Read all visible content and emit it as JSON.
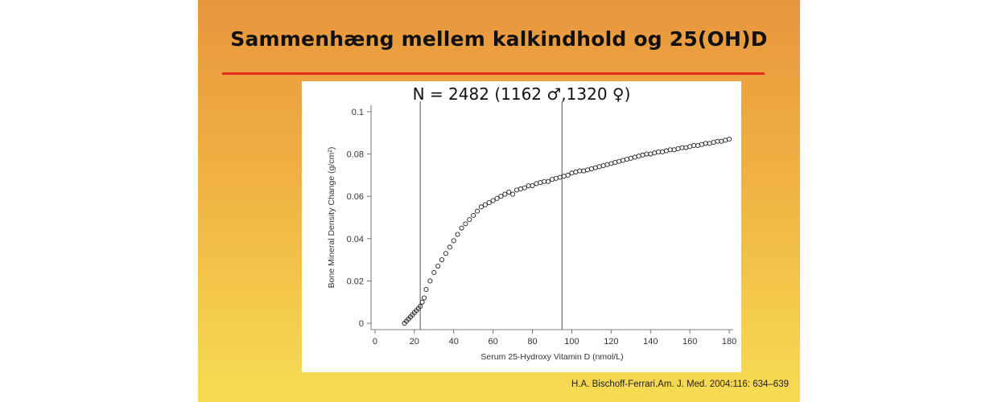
{
  "slide": {
    "title": "Sammenhæng mellem kalkindhold og 25(OH)D",
    "sample_size_label": "N = 2482 (1162 ♂,1320 ♀)",
    "citation": "H.A. Bischoff-Ferrari.Am. J. Med. 2004:116: 634–639",
    "colors": {
      "title_rule": "#e2311c",
      "background_top": "#e8963e",
      "background_bottom": "#f7dc52"
    }
  },
  "chart_data": {
    "type": "scatter",
    "title": "",
    "xlabel": "Serum 25-Hydroxy Vitamin D (nmol/L)",
    "ylabel": "Bone Mineral Density Change (g/cm²)",
    "xlim": [
      -2,
      182
    ],
    "ylim": [
      -0.003,
      0.103
    ],
    "xticks": [
      0,
      20,
      40,
      60,
      80,
      100,
      120,
      140,
      160,
      180
    ],
    "yticks": [
      0,
      0.02,
      0.04,
      0.06,
      0.08,
      0.1
    ],
    "ytick_labels": [
      "0",
      "0.02",
      "0.04",
      "0.06",
      "0.08",
      "0.1"
    ],
    "reference_lines_x": [
      23,
      95
    ],
    "grid": false,
    "marker": "open-circle",
    "series": [
      {
        "x": [
          15,
          16,
          17,
          18,
          19,
          20,
          21,
          22,
          23,
          24,
          25,
          26,
          28,
          30,
          32,
          34,
          36,
          38,
          40,
          42,
          44,
          46,
          48,
          50,
          52,
          54,
          56,
          58,
          60,
          62,
          64,
          66,
          68,
          70,
          72,
          74,
          76,
          78,
          80,
          82,
          84,
          86,
          88,
          90,
          92,
          94,
          96,
          98,
          100,
          102,
          104,
          106,
          108,
          110,
          112,
          114,
          116,
          118,
          120,
          122,
          124,
          126,
          128,
          130,
          132,
          134,
          136,
          138,
          140,
          142,
          144,
          146,
          148,
          150,
          152,
          154,
          156,
          158,
          160,
          162,
          164,
          166,
          168,
          170,
          172,
          174,
          176,
          178,
          180
        ],
        "y": [
          0.0,
          0.001,
          0.002,
          0.003,
          0.004,
          0.005,
          0.006,
          0.007,
          0.008,
          0.01,
          0.012,
          0.016,
          0.02,
          0.024,
          0.027,
          0.03,
          0.033,
          0.036,
          0.039,
          0.042,
          0.045,
          0.047,
          0.049,
          0.051,
          0.053,
          0.055,
          0.056,
          0.057,
          0.058,
          0.059,
          0.06,
          0.061,
          0.062,
          0.061,
          0.063,
          0.0635,
          0.064,
          0.065,
          0.065,
          0.066,
          0.0665,
          0.067,
          0.067,
          0.068,
          0.0685,
          0.069,
          0.0695,
          0.07,
          0.071,
          0.0715,
          0.072,
          0.072,
          0.0725,
          0.073,
          0.0735,
          0.074,
          0.0745,
          0.075,
          0.0755,
          0.076,
          0.0765,
          0.077,
          0.0775,
          0.078,
          0.0785,
          0.079,
          0.0795,
          0.08,
          0.08,
          0.0805,
          0.081,
          0.081,
          0.0815,
          0.082,
          0.082,
          0.0825,
          0.083,
          0.083,
          0.0835,
          0.084,
          0.084,
          0.0845,
          0.085,
          0.085,
          0.0855,
          0.086,
          0.086,
          0.0865,
          0.087
        ]
      }
    ]
  }
}
